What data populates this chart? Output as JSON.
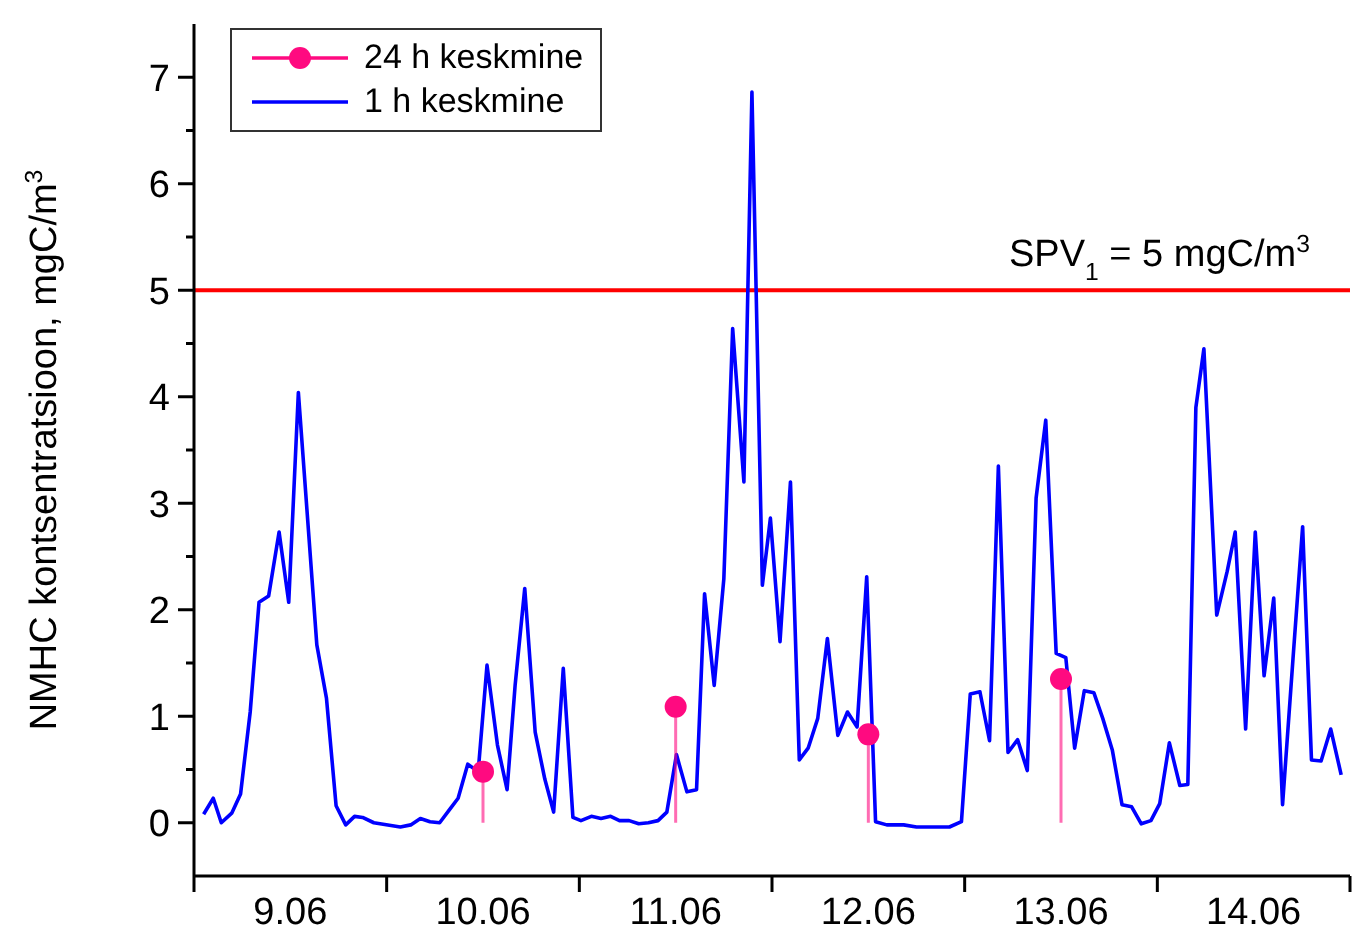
{
  "chart_data": {
    "type": "line",
    "ylabel": "NMHC kontsentratsioon, mgC/m$^{3}$",
    "xlim": [
      "--06-09",
      "--06-15"
    ],
    "xticks": [
      {
        "value": "--06-09",
        "label": null
      },
      {
        "value": "--06-09T12:00",
        "label": "9.06"
      },
      {
        "value": "--06-10",
        "label": null
      },
      {
        "value": "--06-10T12:00",
        "label": "10.06"
      },
      {
        "value": "--06-11",
        "label": null
      },
      {
        "value": "--06-11T12:00",
        "label": "11.06"
      },
      {
        "value": "--06-12",
        "label": null
      },
      {
        "value": "--06-12T12:00",
        "label": "12.06"
      },
      {
        "value": "--06-13",
        "label": null
      },
      {
        "value": "--06-13T12:00",
        "label": "13.06"
      },
      {
        "value": "--06-14",
        "label": null
      },
      {
        "value": "--06-14T12:00",
        "label": "14.06"
      },
      {
        "value": "--06-15",
        "label": null
      }
    ],
    "ylim": [
      -0.5,
      7.5
    ],
    "yticks": [
      0,
      {
        "value": 0.5,
        "label": null
      },
      1,
      {
        "value": 1.5,
        "label": null
      },
      2,
      {
        "value": 2.5,
        "label": null
      },
      3,
      {
        "value": 3.5,
        "label": null
      },
      4,
      {
        "value": 4.5,
        "label": null
      },
      5,
      {
        "value": 5.5,
        "label": null
      },
      6,
      {
        "value": 6.5,
        "label": null
      },
      7
    ],
    "legend": "top left",
    "grid": false,
    "ref_lines": [
      {
        "axis": "y",
        "value": 5,
        "label": "SPV$_{1}$ = 5 mgC/m$^{3}$",
        "color": "#ff0000"
      }
    ],
    "series": [
      {
        "name": "24 h keskmine",
        "type": "lollipop",
        "color": "#ff0a80",
        "marker": "circle",
        "x": [
          "--06-10T12:00",
          "--06-11T12:00",
          "--06-12T12:00",
          "--06-13T12:00"
        ],
        "values": [
          0.48,
          1.09,
          0.83,
          1.35
        ]
      },
      {
        "name": "1 h keskmine",
        "color": "#0000ff",
        "marker": "none",
        "x": [
          "--06-09T01:12",
          "--06-09T02:24",
          "--06-09T03:24",
          "--06-09T04:42",
          "--06-09T05:48",
          "--06-09T07:00",
          "--06-09T08:06",
          "--06-09T09:18",
          "--06-09T10:36",
          "--06-09T11:48",
          "--06-09T13:00",
          "--06-09T15:18",
          "--06-09T16:30",
          "--06-09T17:42",
          "--06-09T18:54",
          "--06-09T20:00",
          "--06-09T21:00",
          "--06-09T22:24",
          "--06-10T01:42",
          "--06-10T03:00",
          "--06-10T04:12",
          "--06-10T05:24",
          "--06-10T06:36",
          "--06-10T07:54",
          "--06-10T08:54",
          "--06-10T10:06",
          "--06-10T11:24",
          "--06-10T12:30",
          "--06-10T13:48",
          "--06-10T15:00",
          "--06-10T16:00",
          "--06-10T17:12",
          "--06-10T18:30",
          "--06-10T19:42",
          "--06-10T20:48",
          "--06-10T22:00",
          "--06-10T23:12",
          "--06-11T00:12",
          "--06-11T01:30",
          "--06-11T02:42",
          "--06-11T03:54",
          "--06-11T05:00",
          "--06-11T06:12",
          "--06-11T07:24",
          "--06-11T08:36",
          "--06-11T09:48",
          "--06-11T10:54",
          "--06-11T12:06",
          "--06-11T13:24",
          "--06-11T14:36",
          "--06-11T15:36",
          "--06-11T16:48",
          "--06-11T18:00",
          "--06-11T19:06",
          "--06-11T20:30",
          "--06-11T21:30",
          "--06-11T22:48",
          "--06-11T23:48",
          "--06-12T01:00",
          "--06-12T02:18",
          "--06-12T03:24",
          "--06-12T04:30",
          "--06-12T05:42",
          "--06-12T06:54",
          "--06-12T08:12",
          "--06-12T09:24",
          "--06-12T10:36",
          "--06-12T11:48",
          "--06-12T12:54",
          "--06-12T14:18",
          "--06-12T16:24",
          "--06-12T18:00",
          "--06-12T22:06",
          "--06-12T23:36",
          "--06-13T00:42",
          "--06-13T01:54",
          "--06-13T03:06",
          "--06-13T04:12",
          "--06-13T05:24",
          "--06-13T06:36",
          "--06-13T07:48",
          "--06-13T08:54",
          "--06-13T10:06",
          "--06-13T11:24",
          "--06-13T12:36",
          "--06-13T13:42",
          "--06-13T14:54",
          "--06-13T16:06",
          "--06-13T17:12",
          "--06-13T18:24",
          "--06-13T19:36",
          "--06-13T20:48",
          "--06-13T22:00",
          "--06-13T23:12",
          "--06-14T00:18",
          "--06-14T01:30",
          "--06-14T02:48",
          "--06-14T03:48",
          "--06-14T04:48",
          "--06-14T05:48",
          "--06-14T07:24",
          "--06-14T08:42",
          "--06-14T09:42",
          "--06-14T11:00",
          "--06-14T12:12",
          "--06-14T13:18",
          "--06-14T14:30",
          "--06-14T15:36",
          "--06-14T16:54",
          "--06-14T18:06",
          "--06-14T19:12",
          "--06-14T20:24",
          "--06-14T21:36",
          "--06-14T22:54"
        ],
        "values": [
          0.08,
          0.23,
          0.0,
          0.09,
          0.27,
          1.04,
          2.07,
          2.13,
          2.73,
          2.07,
          4.04,
          1.67,
          1.17,
          0.16,
          -0.02,
          0.06,
          0.05,
          0,
          -0.04,
          -0.02,
          0.04,
          0.01,
          0,
          0.13,
          0.23,
          0.55,
          0.48,
          1.48,
          0.73,
          0.31,
          1.29,
          2.2,
          0.85,
          0.41,
          0.1,
          1.45,
          0.05,
          0.02,
          0.06,
          0.04,
          0.06,
          0.02,
          0.02,
          -0.01,
          0,
          0.02,
          0.1,
          0.64,
          0.29,
          0.31,
          2.15,
          1.29,
          2.29,
          4.64,
          3.2,
          6.86,
          2.23,
          2.86,
          1.7,
          3.2,
          0.59,
          0.7,
          0.98,
          1.73,
          0.82,
          1.04,
          0.9,
          2.31,
          0.01,
          -0.02,
          -0.02,
          -0.04,
          -0.04,
          0.01,
          1.21,
          1.23,
          0.77,
          3.35,
          0.66,
          0.78,
          0.49,
          3.05,
          3.78,
          1.59,
          1.55,
          0.7,
          1.24,
          1.22,
          0.98,
          0.68,
          0.17,
          0.15,
          -0.01,
          0.02,
          0.18,
          0.75,
          0.35,
          0.36,
          3.9,
          4.45,
          1.95,
          2.36,
          2.73,
          0.88,
          2.73,
          1.38,
          2.11,
          0.17,
          1.54,
          2.78,
          0.59,
          0.58,
          0.88,
          0.45
        ]
      }
    ]
  }
}
